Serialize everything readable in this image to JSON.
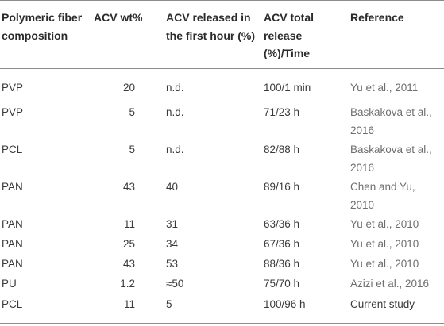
{
  "header": {
    "col_composition": "Polymeric fiber composition",
    "col_wt": "ACV wt%",
    "col_first_hour": "ACV released in the first hour (%)",
    "col_total": "ACV total release (%)/Time",
    "col_reference": "Reference"
  },
  "rows": [
    {
      "composition": "PVP",
      "wt": "20",
      "first_hour": "n.d.",
      "total": "100/1 min",
      "reference": "Yu et al., 2011"
    },
    {
      "composition": "PVP",
      "wt": "5",
      "first_hour": "n.d.",
      "total": "71/23 h",
      "reference": "Baskakova et al., 2016"
    },
    {
      "composition": "PCL",
      "wt": "5",
      "first_hour": "n.d.",
      "total": "82/88 h",
      "reference": "Baskakova et al., 2016"
    },
    {
      "composition": "PAN",
      "wt": "43",
      "first_hour": "40",
      "total": "89/16 h",
      "reference": "Chen and Yu, 2010"
    },
    {
      "composition": "PAN",
      "wt": "11",
      "first_hour": "31",
      "total": "63/36 h",
      "reference": "Yu et al., 2010"
    },
    {
      "composition": "PAN",
      "wt": "25",
      "first_hour": "34",
      "total": "67/36 h",
      "reference": "Yu et al., 2010"
    },
    {
      "composition": "PAN",
      "wt": "43",
      "first_hour": "53",
      "total": "88/36 h",
      "reference": "Yu et al., 2010"
    },
    {
      "composition": "PU",
      "wt": "1.2",
      "first_hour": "≈50",
      "total": "75/70 h",
      "reference": "Azizi et al., 2016"
    },
    {
      "composition": "PCL",
      "wt": "11",
      "first_hour": "5",
      "total": "100/96 h",
      "reference": "Current study"
    }
  ]
}
